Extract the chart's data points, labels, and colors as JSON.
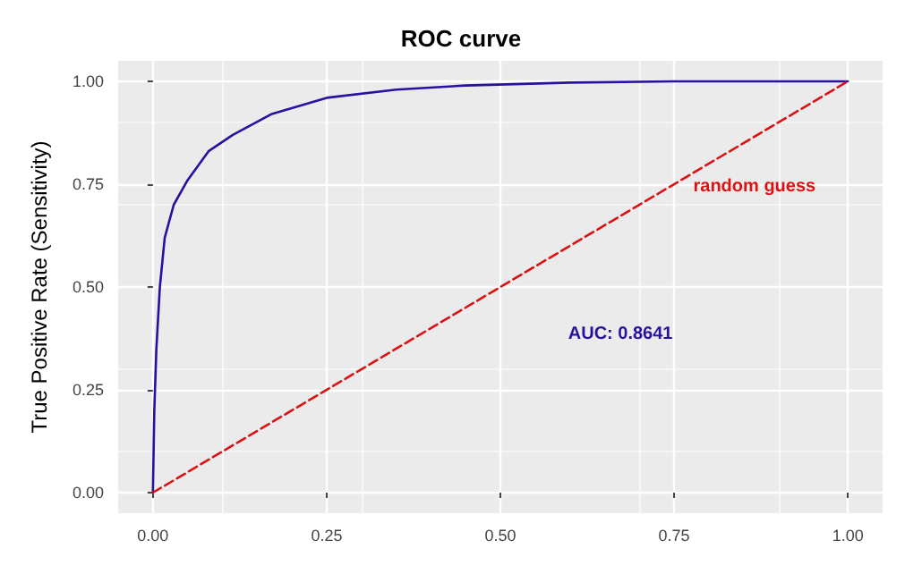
{
  "chart_data": {
    "type": "line",
    "title": "ROC curve",
    "ylabel": "True Positive Rate (Sensitivity)",
    "series": [
      {
        "color": "#2a0fa0",
        "line_style": "solid",
        "x": [
          0,
          0.002,
          0.005,
          0.01,
          0.017,
          0.03,
          0.05,
          0.08,
          0.115,
          0.17,
          0.25,
          0.35,
          0.45,
          0.6,
          0.75,
          1
        ],
        "values": [
          0,
          0.2,
          0.35,
          0.5,
          0.62,
          0.7,
          0.76,
          0.83,
          0.87,
          0.92,
          0.96,
          0.98,
          0.99,
          0.997,
          1,
          1
        ]
      },
      {
        "color": "#dd1111",
        "line_style": "dashed",
        "x": [
          0,
          1
        ],
        "values": [
          0,
          1
        ]
      }
    ],
    "annotations": [
      "AUC: 0.8641",
      "random guess"
    ],
    "xlim": [
      -0.05,
      1.05
    ],
    "ylim": [
      -0.05,
      1.05
    ],
    "xticks": [
      {
        "value": 0,
        "label": "0.00"
      },
      {
        "value": 0.25,
        "label": "0.25"
      },
      {
        "value": 0.5,
        "label": "0.50"
      },
      {
        "value": 0.75,
        "label": "0.75"
      },
      {
        "value": 1,
        "label": "1.00"
      }
    ],
    "yticks": [
      {
        "value": 0,
        "label": "0.00"
      },
      {
        "value": 0.25,
        "label": "0.25"
      },
      {
        "value": 0.5,
        "label": "0.50"
      },
      {
        "value": 0.75,
        "label": "0.75"
      },
      {
        "value": 1,
        "label": "1.00"
      }
    ],
    "grid": true,
    "marker": "none"
  }
}
